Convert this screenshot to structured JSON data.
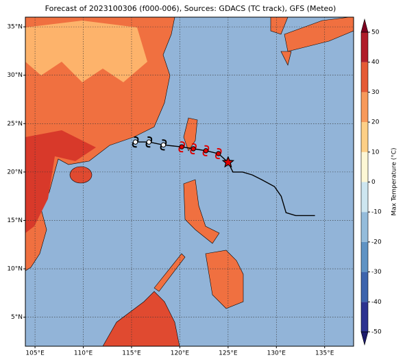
{
  "title": "Forecast of 2023100306 (f000-006), Sources: GDACS (TC track), GFS (Meteo)",
  "map": {
    "lonlim": [
      104,
      138
    ],
    "latlim": [
      2,
      36
    ],
    "xticks": [
      {
        "value": 105,
        "label": "105°E"
      },
      {
        "value": 110,
        "label": "110°E"
      },
      {
        "value": 115,
        "label": "115°E"
      },
      {
        "value": 120,
        "label": "120°E"
      },
      {
        "value": 125,
        "label": "125°E"
      },
      {
        "value": 130,
        "label": "130°E"
      },
      {
        "value": 135,
        "label": "135°E"
      }
    ],
    "yticks": [
      {
        "value": 5,
        "label": "5°N"
      },
      {
        "value": 10,
        "label": "10°N"
      },
      {
        "value": 15,
        "label": "15°N"
      },
      {
        "value": 20,
        "label": "20°N"
      },
      {
        "value": 25,
        "label": "25°N"
      },
      {
        "value": 30,
        "label": "30°N"
      },
      {
        "value": 35,
        "label": "35°N"
      }
    ],
    "grid": true,
    "ocean_color": "#92b4d8"
  },
  "track": {
    "lon": [
      115.4,
      116.8,
      118.3,
      120.2,
      121.4,
      122.7,
      124,
      125,
      125.5,
      126.5,
      127.5,
      128.5,
      129.8,
      130.5,
      131,
      132,
      134
    ],
    "lat": [
      23.1,
      23.1,
      22.8,
      22.6,
      22.4,
      22.2,
      21.9,
      21,
      20,
      20,
      19.7,
      19.2,
      18.5,
      17.5,
      15.8,
      15.5,
      15.5
    ],
    "color": "#000000"
  },
  "storm_positions": {
    "lon": [
      115.4,
      116.8,
      118.3,
      120.2,
      121.4,
      122.7,
      124
    ],
    "lat": [
      23.1,
      23.1,
      22.8,
      22.6,
      22.4,
      22.2,
      21.9
    ],
    "colors": [
      "#ffffff",
      "#ffffff",
      "#ffffff",
      "#e00000",
      "#e00000",
      "#e00000",
      "#e00000"
    ]
  },
  "current_position": {
    "lon": 125,
    "lat": 21,
    "color": "#e00000"
  },
  "colorbar": {
    "label": "Max Temperature (°C)",
    "ticks": [
      -50,
      -40,
      -30,
      -20,
      -10,
      0,
      10,
      20,
      30,
      40,
      50
    ],
    "colors": [
      "#2c3290",
      "#3d64ad",
      "#5f93c4",
      "#94bcdb",
      "#cde6f0",
      "#fdf7d5",
      "#fdcf86",
      "#f7995a",
      "#e55a35",
      "#b01d2a"
    ],
    "under_color": "#1c1a6b",
    "over_color": "#7d0020"
  }
}
